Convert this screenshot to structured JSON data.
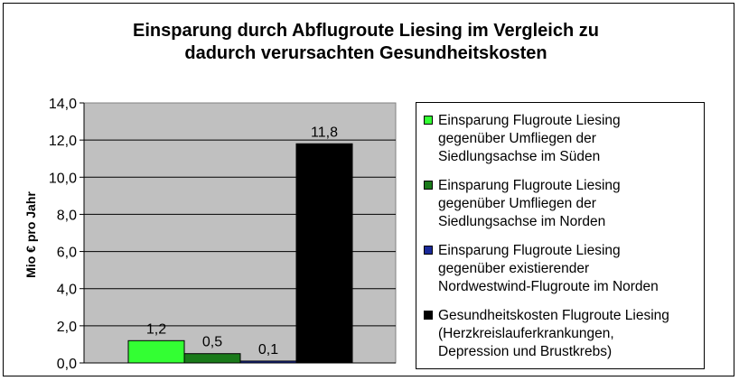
{
  "chart_data": {
    "type": "bar",
    "title": "Einsparung durch Abflugroute Liesing im Vergleich zu\ndadurch verursachten Gesundheitskosten",
    "ylabel": "Mio € pro Jahr",
    "xlabel": "",
    "ylim": [
      0,
      14
    ],
    "yticks": [
      "0,0",
      "2,0",
      "4,0",
      "6,0",
      "8,0",
      "10,0",
      "12,0",
      "14,0"
    ],
    "grid": true,
    "legend_position": "right",
    "series": [
      {
        "name": "Einsparung Flugroute Liesing\ngegenüber Umfliegen der\nSiedlungsachse im Süden",
        "value": 1.2,
        "label": "1,2",
        "color": "#33ff33"
      },
      {
        "name": "Einsparung Flugroute Liesing\ngegenüber Umfliegen der\nSiedlungsachse im Norden",
        "value": 0.5,
        "label": "0,5",
        "color": "#1a7a1a"
      },
      {
        "name": "Einsparung Flugroute Liesing\ngegenüber existierender\nNordwestwind-Flugroute im Norden",
        "value": 0.1,
        "label": "0,1",
        "color": "#1a2a99"
      },
      {
        "name": "Gesundheitskosten Flugroute Liesing\n(Herzkreislauferkrankungen,\nDepression und Brustkrebs)",
        "value": 11.8,
        "label": "11,8",
        "color": "#000000"
      }
    ]
  }
}
